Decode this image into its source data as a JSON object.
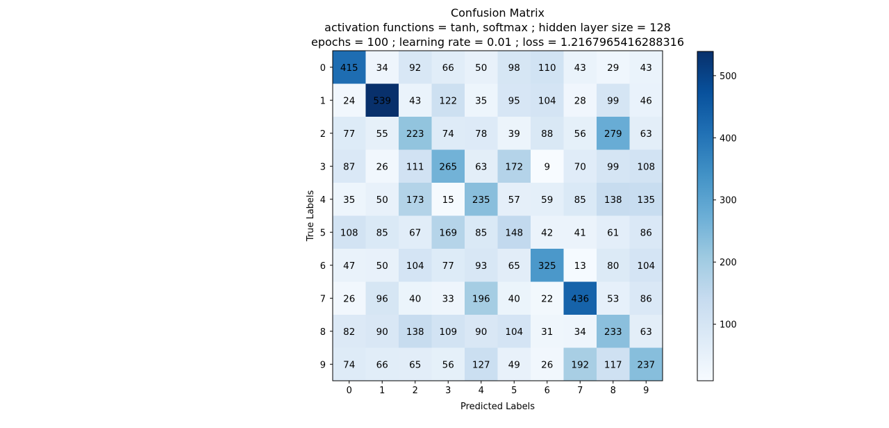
{
  "chart_data": {
    "type": "heatmap",
    "title_lines": [
      "Confusion Matrix",
      "activation functions = tanh, softmax ; hidden layer size = 128",
      "epochs = 100 ; learning rate = 0.01 ; loss = 1.2167965416288316"
    ],
    "xlabel": "Predicted Labels",
    "ylabel": "True Labels",
    "x_categories": [
      "0",
      "1",
      "2",
      "3",
      "4",
      "5",
      "6",
      "7",
      "8",
      "9"
    ],
    "y_categories": [
      "0",
      "1",
      "2",
      "3",
      "4",
      "5",
      "6",
      "7",
      "8",
      "9"
    ],
    "matrix": [
      [
        415,
        34,
        92,
        66,
        50,
        98,
        110,
        43,
        29,
        43
      ],
      [
        24,
        539,
        43,
        122,
        35,
        95,
        104,
        28,
        99,
        46
      ],
      [
        77,
        55,
        223,
        74,
        78,
        39,
        88,
        56,
        279,
        63
      ],
      [
        87,
        26,
        111,
        265,
        63,
        172,
        9,
        70,
        99,
        108
      ],
      [
        35,
        50,
        173,
        15,
        235,
        57,
        59,
        85,
        138,
        135
      ],
      [
        108,
        85,
        67,
        169,
        85,
        148,
        42,
        41,
        61,
        86
      ],
      [
        47,
        50,
        104,
        77,
        93,
        65,
        325,
        13,
        80,
        104
      ],
      [
        26,
        96,
        40,
        33,
        196,
        40,
        22,
        436,
        53,
        86
      ],
      [
        82,
        90,
        138,
        109,
        90,
        104,
        31,
        34,
        233,
        63
      ],
      [
        74,
        66,
        65,
        56,
        127,
        49,
        26,
        192,
        117,
        237
      ]
    ],
    "colormap": "Blues",
    "colormap_stops": [
      "#f7fbff",
      "#deebf7",
      "#c6dbef",
      "#9ecae1",
      "#6baed6",
      "#4292c6",
      "#2171b5",
      "#08519c",
      "#08306b"
    ],
    "value_range": [
      9,
      539
    ],
    "colorbar_ticks": [
      100,
      200,
      300,
      400,
      500
    ],
    "grid": false
  }
}
